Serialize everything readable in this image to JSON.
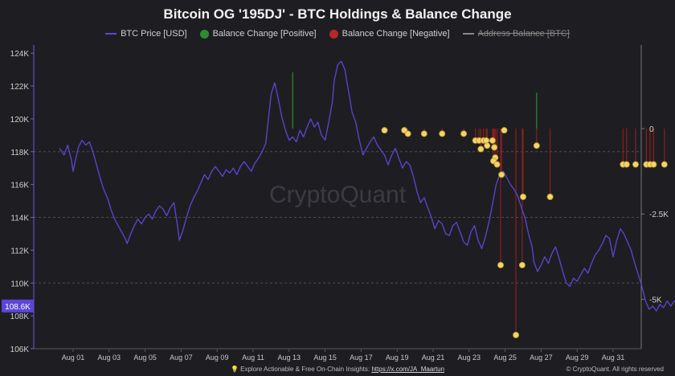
{
  "header": {
    "title": "Bitcoin OG '195DJ' - BTC Holdings & Balance Change"
  },
  "legend": {
    "items": [
      {
        "label": "BTC Price [USD]",
        "color": "#5b46d6",
        "kind": "line"
      },
      {
        "label": "Balance Change [Positive]",
        "color": "#2e8b2e",
        "kind": "dot"
      },
      {
        "label": "Balance Change [Negative]",
        "color": "#b52828",
        "kind": "dot"
      },
      {
        "label": "Address Balance [BTC]",
        "color": "#888888",
        "kind": "line",
        "hidden": true
      }
    ]
  },
  "watermark": "CryptoQuant",
  "footer": {
    "text": "Explore Actionable & Free On-Chain Insights:",
    "link": "https://x.com/JA_Maartun",
    "copyright": "© CryptoQuant. All rights reserved"
  },
  "chart_data": {
    "type": "line",
    "title": "Bitcoin OG '195DJ' - BTC Holdings & Balance Change",
    "x_ticks": [
      "Aug 01",
      "Aug 03",
      "Aug 05",
      "Aug 07",
      "Aug 09",
      "Aug 11",
      "Aug 13",
      "Aug 15",
      "Aug 17",
      "Aug 19",
      "Aug 21",
      "Aug 23",
      "Aug 25",
      "Aug 27",
      "Aug 29",
      "Aug 31"
    ],
    "x_range_days": [
      -0.75,
      32.3
    ],
    "y_left": {
      "ticks": [
        106000,
        108000,
        110000,
        112000,
        114000,
        116000,
        118000,
        120000,
        122000,
        124000
      ],
      "tick_labels": [
        "106K",
        "108K",
        "110K",
        "112K",
        "114K",
        "116K",
        "118K",
        "120K",
        "122K",
        "124K"
      ],
      "range": [
        106000,
        124500
      ]
    },
    "y_right": {
      "ticks": [
        0,
        -2500,
        -5000
      ],
      "tick_labels": [
        "0",
        "-2.5K",
        "-5K"
      ],
      "range": [
        -6450,
        2450
      ]
    },
    "current_price_label": "108.6K",
    "current_price": 108600,
    "grid": "horizontal dashed at 118K, 114K, 110K",
    "price_series": {
      "name": "BTC Price [USD]",
      "points": [
        [
          -0.75,
          118200
        ],
        [
          -0.5,
          117800
        ],
        [
          -0.3,
          118400
        ],
        [
          -0.1,
          117500
        ],
        [
          0.0,
          116800
        ],
        [
          0.15,
          117600
        ],
        [
          0.3,
          118300
        ],
        [
          0.5,
          118700
        ],
        [
          0.7,
          118400
        ],
        [
          0.9,
          118600
        ],
        [
          1.1,
          118000
        ],
        [
          1.3,
          117200
        ],
        [
          1.5,
          116400
        ],
        [
          1.7,
          115700
        ],
        [
          1.9,
          115200
        ],
        [
          2.1,
          114500
        ],
        [
          2.3,
          113900
        ],
        [
          2.5,
          113500
        ],
        [
          2.7,
          113100
        ],
        [
          2.9,
          112700
        ],
        [
          3.0,
          112400
        ],
        [
          3.2,
          113000
        ],
        [
          3.4,
          113500
        ],
        [
          3.6,
          113900
        ],
        [
          3.8,
          113600
        ],
        [
          4.0,
          114000
        ],
        [
          4.2,
          114200
        ],
        [
          4.4,
          113900
        ],
        [
          4.6,
          114400
        ],
        [
          4.8,
          114700
        ],
        [
          5.0,
          114500
        ],
        [
          5.2,
          114100
        ],
        [
          5.4,
          114600
        ],
        [
          5.6,
          114900
        ],
        [
          5.8,
          113500
        ],
        [
          5.9,
          112600
        ],
        [
          6.1,
          113200
        ],
        [
          6.3,
          114000
        ],
        [
          6.5,
          114700
        ],
        [
          6.7,
          115200
        ],
        [
          6.9,
          115600
        ],
        [
          7.1,
          116100
        ],
        [
          7.3,
          116600
        ],
        [
          7.5,
          116300
        ],
        [
          7.7,
          116800
        ],
        [
          7.9,
          117100
        ],
        [
          8.1,
          116800
        ],
        [
          8.3,
          116500
        ],
        [
          8.5,
          116900
        ],
        [
          8.7,
          116700
        ],
        [
          8.9,
          117000
        ],
        [
          9.1,
          116600
        ],
        [
          9.3,
          117100
        ],
        [
          9.5,
          117400
        ],
        [
          9.7,
          117100
        ],
        [
          9.9,
          116800
        ],
        [
          10.1,
          117300
        ],
        [
          10.3,
          117600
        ],
        [
          10.5,
          118000
        ],
        [
          10.7,
          118500
        ],
        [
          10.8,
          119500
        ],
        [
          10.9,
          120500
        ],
        [
          11.0,
          121500
        ],
        [
          11.2,
          122200
        ],
        [
          11.4,
          121200
        ],
        [
          11.6,
          120100
        ],
        [
          11.8,
          119300
        ],
        [
          12.0,
          118700
        ],
        [
          12.2,
          118900
        ],
        [
          12.4,
          118600
        ],
        [
          12.6,
          119300
        ],
        [
          12.8,
          118900
        ],
        [
          13.0,
          119500
        ],
        [
          13.2,
          120000
        ],
        [
          13.4,
          119500
        ],
        [
          13.6,
          119800
        ],
        [
          13.8,
          119000
        ],
        [
          14.0,
          118700
        ],
        [
          14.2,
          119800
        ],
        [
          14.4,
          121000
        ],
        [
          14.5,
          122300
        ],
        [
          14.7,
          123300
        ],
        [
          14.9,
          123500
        ],
        [
          15.1,
          123000
        ],
        [
          15.3,
          121700
        ],
        [
          15.5,
          120400
        ],
        [
          15.7,
          119800
        ],
        [
          15.9,
          118700
        ],
        [
          16.1,
          117800
        ],
        [
          16.3,
          118200
        ],
        [
          16.5,
          118600
        ],
        [
          16.7,
          118900
        ],
        [
          16.9,
          118400
        ],
        [
          17.1,
          118100
        ],
        [
          17.3,
          117800
        ],
        [
          17.5,
          117200
        ],
        [
          17.7,
          117800
        ],
        [
          17.9,
          118200
        ],
        [
          18.1,
          117600
        ],
        [
          18.3,
          117000
        ],
        [
          18.5,
          117400
        ],
        [
          18.7,
          117200
        ],
        [
          18.9,
          116500
        ],
        [
          19.1,
          115600
        ],
        [
          19.3,
          114900
        ],
        [
          19.5,
          115200
        ],
        [
          19.7,
          114600
        ],
        [
          19.9,
          114000
        ],
        [
          20.1,
          113300
        ],
        [
          20.3,
          113800
        ],
        [
          20.5,
          113600
        ],
        [
          20.7,
          113000
        ],
        [
          20.9,
          112900
        ],
        [
          21.1,
          113500
        ],
        [
          21.3,
          113700
        ],
        [
          21.5,
          113100
        ],
        [
          21.7,
          112500
        ],
        [
          21.9,
          112300
        ],
        [
          22.1,
          113100
        ],
        [
          22.3,
          113500
        ],
        [
          22.5,
          112600
        ],
        [
          22.7,
          112100
        ],
        [
          22.9,
          112800
        ],
        [
          23.1,
          113700
        ],
        [
          23.3,
          114800
        ],
        [
          23.5,
          116000
        ],
        [
          23.7,
          116600
        ],
        [
          23.9,
          116800
        ],
        [
          24.1,
          116400
        ],
        [
          24.3,
          116000
        ],
        [
          24.5,
          115700
        ],
        [
          24.7,
          115300
        ],
        [
          24.9,
          114600
        ],
        [
          25.1,
          114000
        ],
        [
          25.3,
          113000
        ],
        [
          25.5,
          112200
        ],
        [
          25.6,
          111300
        ],
        [
          25.8,
          110700
        ],
        [
          26.0,
          111100
        ],
        [
          26.2,
          111600
        ],
        [
          26.4,
          111200
        ],
        [
          26.6,
          111800
        ],
        [
          26.8,
          112200
        ],
        [
          27.0,
          111500
        ],
        [
          27.2,
          110700
        ],
        [
          27.4,
          110000
        ],
        [
          27.6,
          109800
        ],
        [
          27.8,
          110300
        ],
        [
          28.0,
          110100
        ],
        [
          28.2,
          110500
        ],
        [
          28.4,
          110900
        ],
        [
          28.6,
          110600
        ],
        [
          28.8,
          111200
        ],
        [
          29.0,
          111700
        ],
        [
          29.2,
          112000
        ],
        [
          29.4,
          112400
        ],
        [
          29.6,
          112900
        ],
        [
          29.8,
          112700
        ],
        [
          30.0,
          111600
        ],
        [
          30.2,
          112600
        ],
        [
          30.4,
          113300
        ],
        [
          30.6,
          113000
        ],
        [
          30.8,
          112500
        ],
        [
          31.0,
          112000
        ],
        [
          31.2,
          111200
        ],
        [
          31.4,
          110500
        ],
        [
          31.6,
          109800
        ],
        [
          31.8,
          108900
        ],
        [
          32.0,
          108400
        ],
        [
          32.2,
          108600
        ],
        [
          32.4,
          108300
        ],
        [
          32.6,
          108700
        ],
        [
          32.8,
          108500
        ],
        [
          33.0,
          108900
        ],
        [
          33.2,
          108600
        ],
        [
          33.4,
          108900
        ],
        [
          33.6,
          109000
        ],
        [
          33.8,
          108800
        ],
        [
          34.0,
          108200
        ],
        [
          34.2,
          107800
        ],
        [
          34.4,
          108500
        ],
        [
          34.6,
          109600
        ],
        [
          34.8,
          108600
        ]
      ]
    },
    "balance_changes_positive": [
      {
        "x": 12.2,
        "y": 1650
      },
      {
        "x": 25.75,
        "y": 1050
      }
    ],
    "balance_changes_negative": [
      {
        "x": 17.3,
        "y": -50
      },
      {
        "x": 18.4,
        "y": -50
      },
      {
        "x": 18.6,
        "y": -150
      },
      {
        "x": 19.5,
        "y": -150
      },
      {
        "x": 20.5,
        "y": -150
      },
      {
        "x": 21.7,
        "y": -150
      },
      {
        "x": 22.35,
        "y": -350
      },
      {
        "x": 22.55,
        "y": -350
      },
      {
        "x": 22.8,
        "y": -350
      },
      {
        "x": 22.95,
        "y": -350
      },
      {
        "x": 22.65,
        "y": -600
      },
      {
        "x": 23.0,
        "y": -500
      },
      {
        "x": 23.3,
        "y": -350
      },
      {
        "x": 23.4,
        "y": -550
      },
      {
        "x": 23.45,
        "y": -850
      },
      {
        "x": 23.35,
        "y": -950
      },
      {
        "x": 23.55,
        "y": -1050
      },
      {
        "x": 23.8,
        "y": -1350
      },
      {
        "x": 23.95,
        "y": -50
      },
      {
        "x": 23.75,
        "y": -4000
      },
      {
        "x": 24.6,
        "y": -6050
      },
      {
        "x": 25.0,
        "y": -2000
      },
      {
        "x": 24.95,
        "y": -4000
      },
      {
        "x": 25.75,
        "y": -500
      },
      {
        "x": 26.5,
        "y": -2000
      },
      {
        "x": 30.55,
        "y": -1050
      },
      {
        "x": 30.75,
        "y": -1050
      },
      {
        "x": 31.25,
        "y": -1050
      },
      {
        "x": 31.85,
        "y": -1050
      },
      {
        "x": 32.05,
        "y": -1050
      },
      {
        "x": 32.25,
        "y": -1050
      },
      {
        "x": 32.85,
        "y": -1050
      }
    ]
  }
}
